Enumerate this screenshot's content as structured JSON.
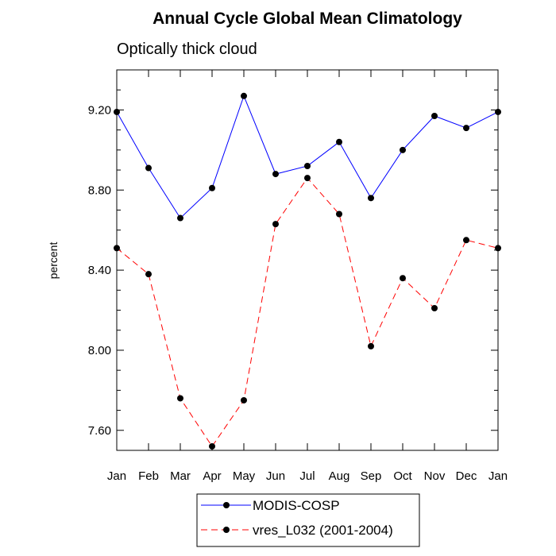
{
  "chart_data": {
    "type": "line",
    "title": "Annual Cycle Global Mean Climatology",
    "subtitle": "Optically thick cloud",
    "xlabel": "",
    "ylabel": "percent",
    "categories": [
      "Jan",
      "Feb",
      "Mar",
      "Apr",
      "May",
      "Jun",
      "Jul",
      "Aug",
      "Sep",
      "Oct",
      "Nov",
      "Dec",
      "Jan"
    ],
    "yticks": [
      "7.60",
      "8.00",
      "8.40",
      "8.80",
      "9.20"
    ],
    "ylim": [
      7.5,
      9.4
    ],
    "grid": false,
    "legend_position": "bottom-center",
    "series": [
      {
        "name": "MODIS-COSP",
        "color": "#0000ff",
        "dash": "solid",
        "marker": "filled-circle",
        "values": [
          9.19,
          8.91,
          8.66,
          8.81,
          9.27,
          8.88,
          8.92,
          9.04,
          8.76,
          9.0,
          9.17,
          9.11,
          9.19
        ]
      },
      {
        "name": "vres_L032 (2001-2004)",
        "color": "#ff0000",
        "dash": "dashed",
        "marker": "filled-circle",
        "values": [
          8.51,
          8.38,
          7.76,
          7.52,
          7.75,
          8.63,
          8.86,
          8.68,
          8.02,
          8.36,
          8.21,
          8.55,
          8.51
        ]
      }
    ]
  }
}
